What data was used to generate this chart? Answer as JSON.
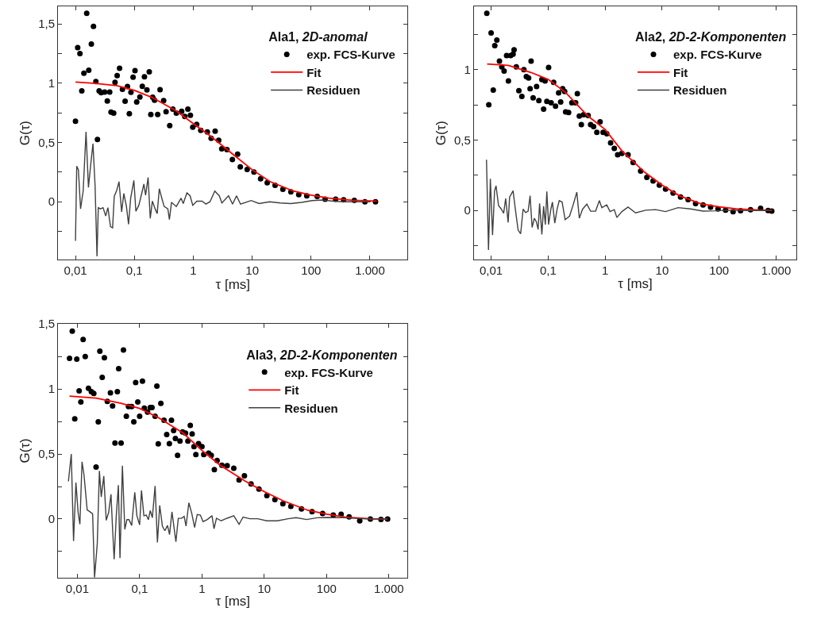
{
  "chart_data": [
    {
      "type": "scatter",
      "xlabel": "τ [ms]",
      "ylabel": "G(τ)",
      "legend_title": "Ala1, 2D-anomal",
      "legend": "top right",
      "log": "x",
      "line_style": "solid",
      "xlim": [
        0.00505,
        4365
      ],
      "ylim": [
        -0.49,
        1.65
      ],
      "xticks": [
        {
          "value": 0.01,
          "label": "0,01"
        },
        {
          "value": 0.1,
          "label": "0,1"
        },
        1,
        10,
        100,
        {
          "value": 1000,
          "label": "1.000"
        }
      ],
      "yticks": [
        {
          "value": -0.25,
          "label": null
        },
        0,
        {
          "value": 0.25,
          "label": null
        },
        {
          "value": 0.5,
          "label": "0,5"
        },
        {
          "value": 0.75,
          "label": null
        },
        1,
        {
          "value": 1.25,
          "label": null
        },
        {
          "value": 1.5,
          "label": "1,5"
        }
      ],
      "series": [
        {
          "name": "exp. FCS-Kurve",
          "type": "scatter",
          "color": "#000000",
          "marker": "circle",
          "x": [
            0.01,
            0.0109,
            0.0119,
            0.0128,
            0.0139,
            0.0155,
            0.0168,
            0.0186,
            0.0202,
            0.0222,
            0.0236,
            0.0252,
            0.0273,
            0.0313,
            0.0347,
            0.0381,
            0.0401,
            0.0445,
            0.0469,
            0.051,
            0.056,
            0.0627,
            0.0696,
            0.0763,
            0.0821,
            0.0874,
            0.095,
            0.1025,
            0.1095,
            0.124,
            0.1363,
            0.1482,
            0.1632,
            0.1789,
            0.1902,
            0.2045,
            0.2196,
            0.2488,
            0.2727,
            0.3137,
            0.3452,
            0.3982,
            0.4496,
            0.5154,
            0.6349,
            0.7174,
            0.8096,
            0.8925,
            0.979,
            1.143,
            1.34,
            1.73,
            2.01,
            2.35,
            2.7,
            3.04,
            3.73,
            4.61,
            5.66,
            6.28,
            8.22,
            10.7,
            13.9,
            18.0,
            24.5,
            33.2,
            45.4,
            61.8,
            84.5,
            127,
            173,
            261,
            357,
            542,
            820,
            1240
          ],
          "values": [
            0.68,
            1.3,
            1.25,
            0.935,
            1.085,
            1.59,
            1.11,
            1.33,
            1.48,
            1.015,
            0.525,
            0.935,
            0.92,
            0.925,
            0.85,
            0.925,
            0.757,
            0.748,
            1.007,
            1.065,
            1.127,
            0.949,
            0.848,
            0.973,
            0.743,
            0.924,
            1.051,
            1.107,
            0.842,
            0.884,
            0.975,
            1.054,
            0.944,
            1.096,
            0.737,
            0.882,
            0.857,
            0.737,
            0.946,
            0.853,
            0.759,
            0.643,
            0.781,
            0.748,
            0.763,
            0.719,
            0.781,
            0.73,
            0.629,
            0.652,
            0.603,
            0.589,
            0.536,
            0.596,
            0.518,
            0.446,
            0.44,
            0.357,
            0.402,
            0.295,
            0.272,
            0.25,
            0.194,
            0.161,
            0.138,
            0.105,
            0.083,
            0.06,
            0.049,
            0.045,
            0.022,
            0.022,
            0.016,
            0.011,
            0,
            0
          ]
        },
        {
          "name": "Fit",
          "type": "line",
          "color": "#ff0000",
          "x": [
            0.01,
            0.02,
            0.05,
            0.1,
            0.2,
            0.5,
            1,
            2,
            5,
            10,
            20,
            50,
            100,
            200,
            500,
            1300
          ],
          "values": [
            1.01,
            1.0,
            0.98,
            0.94,
            0.88,
            0.77,
            0.66,
            0.55,
            0.39,
            0.27,
            0.17,
            0.09,
            0.055,
            0.03,
            0.012,
            0.005
          ]
        },
        {
          "name": "Residuen",
          "type": "line",
          "color": "#404040",
          "x": [
            0.01,
            0.0105,
            0.0112,
            0.0122,
            0.0135,
            0.0151,
            0.0166,
            0.0182,
            0.0198,
            0.0215,
            0.0232,
            0.0244,
            0.0265,
            0.0294,
            0.0326,
            0.0355,
            0.0393,
            0.0427,
            0.0455,
            0.0505,
            0.0548,
            0.0608,
            0.0661,
            0.0733,
            0.0796,
            0.0865,
            0.098,
            0.106,
            0.119,
            0.134,
            0.145,
            0.155,
            0.171,
            0.186,
            0.202,
            0.225,
            0.244,
            0.265,
            0.294,
            0.32,
            0.37,
            0.393,
            0.427,
            0.515,
            0.621,
            0.675,
            0.78,
            0.883,
            0.98,
            1.15,
            1.41,
            1.64,
            1.92,
            2.32,
            2.76,
            3.06,
            3.97,
            4.64,
            5.42,
            6.34,
            9.6,
            13.1,
            19.8,
            30,
            45,
            69,
            104,
            158,
            239,
            362,
            1020
          ],
          "values": [
            -0.33,
            0.3,
            0.27,
            -0.06,
            0.09,
            0.59,
            0.12,
            0.32,
            0.49,
            0.14,
            -0.46,
            -0.05,
            -0.06,
            -0.05,
            -0.12,
            -0.05,
            -0.21,
            -0.22,
            0.045,
            0.1,
            0.17,
            -0.085,
            0.07,
            -0.04,
            -0.19,
            0.03,
            0.18,
            -0.08,
            -0.03,
            0.075,
            0.15,
            0.055,
            0.205,
            -0.14,
            0.005,
            -0.06,
            -0.1,
            0.11,
            0.025,
            -0.04,
            -0.06,
            -0.15,
            -0.005,
            -0.04,
            0.03,
            -0.015,
            0.075,
            0.05,
            -0.03,
            0.005,
            0.005,
            -0.02,
            0.0,
            0.09,
            0.05,
            -0.01,
            0.05,
            -0.02,
            0.05,
            -0.02,
            0.01,
            -0.015,
            0.0,
            -0.01,
            -0.015,
            -0.005,
            0.01,
            0.015,
            0.005,
            0,
            0
          ]
        }
      ]
    },
    {
      "type": "scatter",
      "xlabel": "τ [ms]",
      "ylabel": "G(τ)",
      "legend_title": "Ala2, 2D-2-Komponenten",
      "legend": "top right",
      "log": "x",
      "line_style": "solid",
      "xlim": [
        0.00498,
        2290
      ],
      "ylim": [
        -0.35,
        1.45
      ],
      "xticks": [
        {
          "value": 0.01,
          "label": "0,01"
        },
        {
          "value": 0.1,
          "label": "0,1"
        },
        1,
        10,
        100,
        {
          "value": 1000,
          "label": "1.000"
        }
      ],
      "yticks": [
        {
          "value": -0.25,
          "label": null
        },
        0,
        {
          "value": 0.25,
          "label": null
        },
        {
          "value": 0.5,
          "label": "0,5"
        },
        {
          "value": 0.75,
          "label": null
        },
        1,
        {
          "value": 1.25,
          "label": null
        }
      ],
      "series": [
        {
          "name": "exp. FCS-Kurve",
          "type": "scatter",
          "color": "#000000",
          "marker": "circle",
          "x": [
            0.0084,
            0.0091,
            0.01,
            0.0109,
            0.0116,
            0.0126,
            0.014,
            0.0154,
            0.0169,
            0.0187,
            0.0201,
            0.022,
            0.0243,
            0.0253,
            0.0277,
            0.0307,
            0.0346,
            0.0376,
            0.0415,
            0.0455,
            0.0483,
            0.0503,
            0.0546,
            0.0628,
            0.0688,
            0.0777,
            0.0834,
            0.0885,
            0.095,
            0.102,
            0.113,
            0.125,
            0.135,
            0.153,
            0.166,
            0.18,
            0.195,
            0.203,
            0.229,
            0.261,
            0.304,
            0.326,
            0.353,
            0.383,
            0.42,
            0.504,
            0.557,
            0.628,
            0.716,
            0.817,
            0.922,
            1.07,
            1.25,
            1.45,
            1.66,
            1.97,
            2.53,
            3.1,
            4.2,
            5.4,
            6.95,
            8.95,
            11.5,
            15.6,
            21.1,
            28.6,
            38.7,
            52.4,
            71,
            96,
            130,
            176,
            238,
            357,
            535,
            725,
            841
          ],
          "values": [
            1.4,
            0.75,
            1.26,
            0.855,
            1.17,
            1.21,
            1.06,
            1.02,
            0.99,
            1.1,
            0.92,
            1.1,
            1.11,
            1.14,
            1.02,
            0.85,
            0.81,
            1.0,
            0.95,
            0.94,
            0.865,
            1.06,
            0.8,
            0.88,
            0.78,
            0.93,
            0.72,
            0.92,
            0.775,
            1.015,
            0.765,
            0.91,
            0.74,
            0.835,
            0.77,
            0.865,
            0.845,
            0.7,
            0.695,
            0.765,
            0.765,
            0.83,
            0.67,
            0.61,
            0.68,
            0.675,
            0.61,
            0.595,
            0.555,
            0.63,
            0.555,
            0.545,
            0.48,
            0.44,
            0.395,
            0.405,
            0.395,
            0.34,
            0.28,
            0.235,
            0.21,
            0.18,
            0.152,
            0.124,
            0.096,
            0.077,
            0.049,
            0.039,
            0.024,
            0.011,
            0.002,
            -0.008,
            -0.002,
            0.006,
            0.015,
            0,
            -0.004
          ]
        },
        {
          "name": "Fit",
          "type": "line",
          "color": "#ff0000",
          "x": [
            0.0085,
            0.02,
            0.05,
            0.1,
            0.2,
            0.5,
            1,
            2,
            5,
            10,
            20,
            50,
            100,
            200,
            500,
            850
          ],
          "values": [
            1.04,
            1.03,
            0.98,
            0.93,
            0.84,
            0.67,
            0.575,
            0.42,
            0.27,
            0.18,
            0.105,
            0.045,
            0.026,
            0.012,
            0.003,
            0.0
          ]
        },
        {
          "name": "Residuen",
          "type": "line",
          "color": "#404040",
          "x": [
            0.0083,
            0.009,
            0.0097,
            0.0106,
            0.0115,
            0.0122,
            0.0135,
            0.0151,
            0.0166,
            0.018,
            0.0199,
            0.0211,
            0.0243,
            0.0264,
            0.0298,
            0.033,
            0.0364,
            0.0403,
            0.0446,
            0.0483,
            0.0524,
            0.0574,
            0.0622,
            0.0668,
            0.0709,
            0.0777,
            0.0834,
            0.0895,
            0.095,
            0.102,
            0.111,
            0.119,
            0.131,
            0.144,
            0.157,
            0.176,
            0.199,
            0.238,
            0.275,
            0.319,
            0.353,
            0.403,
            0.479,
            0.557,
            0.681,
            0.793,
            0.877,
            1.07,
            1.22,
            1.45,
            1.61,
            1.97,
            2.53,
            3.43,
            5.14,
            7.69,
            11.5,
            19.1,
            31.6,
            52.4,
            86.9,
            144,
            292,
            802
          ],
          "values": [
            0.36,
            -0.28,
            0.225,
            -0.175,
            0.14,
            0.175,
            0.035,
            0.01,
            -0.02,
            0.085,
            -0.085,
            0.095,
            0.14,
            0.02,
            -0.14,
            -0.165,
            0.01,
            -0.015,
            -0.005,
            0.105,
            -0.12,
            -0.055,
            -0.08,
            -0.135,
            0.05,
            -0.17,
            0.03,
            -0.1,
            0.135,
            -0.1,
            0.002,
            0.06,
            -0.09,
            0.01,
            0.07,
            0.06,
            -0.065,
            -0.04,
            0.04,
            0.13,
            -0.055,
            0.01,
            0.045,
            -0.005,
            -0.005,
            0.07,
            0.02,
            0.04,
            -0.008,
            0.006,
            -0.05,
            -0.008,
            0.024,
            -0.017,
            0.002,
            0.006,
            -0.008,
            0.02,
            0.011,
            -0.004,
            -0.002,
            0.002,
            0,
            0
          ]
        }
      ]
    },
    {
      "type": "scatter",
      "xlabel": "τ [ms]",
      "ylabel": "G(τ)",
      "legend_title": "Ala3, 2D-2-Komponenten",
      "legend": "top right",
      "log": "x",
      "line_style": "solid",
      "xlim": [
        0.0049,
        2000
      ],
      "ylim": [
        -0.45,
        1.5
      ],
      "xticks": [
        {
          "value": 0.01,
          "label": "0,01"
        },
        {
          "value": 0.1,
          "label": "0,1"
        },
        1,
        10,
        100,
        {
          "value": 1000,
          "label": "1.000"
        }
      ],
      "yticks": [
        {
          "value": -0.25,
          "label": null
        },
        0,
        {
          "value": 0.25,
          "label": null
        },
        {
          "value": 0.5,
          "label": "0,5"
        },
        {
          "value": 0.75,
          "label": null
        },
        1,
        {
          "value": 1.25,
          "label": null
        },
        {
          "value": 1.5,
          "label": "1,5"
        }
      ],
      "series": [
        {
          "name": "exp. FCS-Kurve",
          "type": "scatter",
          "color": "#000000",
          "marker": "circle",
          "x": [
            0.0075,
            0.0083,
            0.0091,
            0.0098,
            0.0107,
            0.0114,
            0.0124,
            0.0134,
            0.0151,
            0.0168,
            0.0184,
            0.02,
            0.0217,
            0.023,
            0.0251,
            0.0272,
            0.0303,
            0.034,
            0.0368,
            0.0402,
            0.0439,
            0.0461,
            0.0504,
            0.055,
            0.0612,
            0.0662,
            0.0745,
            0.0806,
            0.0863,
            0.0934,
            0.1,
            0.111,
            0.119,
            0.134,
            0.148,
            0.158,
            0.177,
            0.189,
            0.199,
            0.219,
            0.246,
            0.272,
            0.3,
            0.324,
            0.351,
            0.375,
            0.406,
            0.444,
            0.489,
            0.545,
            0.595,
            0.65,
            0.696,
            0.745,
            0.798,
            0.881,
            1.0,
            1.07,
            1.28,
            1.41,
            1.58,
            1.75,
            2.09,
            2.54,
            3.24,
            3.94,
            4.8,
            6.13,
            8.22,
            11.0,
            14.8,
            19.9,
            26.7,
            39.5,
            58.4,
            86.3,
            128,
            171,
            230,
            340,
            504,
            745,
            953
          ],
          "values": [
            1.235,
            1.445,
            0.77,
            1.23,
            0.985,
            0.9,
            1.38,
            1.25,
            1.005,
            0.98,
            0.965,
            0.4,
            0.747,
            1.29,
            1.09,
            1.24,
            0.905,
            0.97,
            0.87,
            0.584,
            0.98,
            1.157,
            0.584,
            1.3,
            0.79,
            0.865,
            0.865,
            0.747,
            1.05,
            0.9,
            0.79,
            1.06,
            0.853,
            0.822,
            0.857,
            0.857,
            0.79,
            1.022,
            0.578,
            0.89,
            0.76,
            0.65,
            0.58,
            0.76,
            0.68,
            0.62,
            0.49,
            0.6,
            0.67,
            0.66,
            0.6,
            0.72,
            0.655,
            0.557,
            0.496,
            0.58,
            0.557,
            0.496,
            0.506,
            0.49,
            0.38,
            0.45,
            0.414,
            0.41,
            0.39,
            0.3,
            0.333,
            0.27,
            0.23,
            0.18,
            0.149,
            0.118,
            0.098,
            0.078,
            0.057,
            0.043,
            0.031,
            0.037,
            0.016,
            -0.014,
            0,
            -0.004,
            0
          ]
        },
        {
          "name": "Fit",
          "type": "line",
          "color": "#ff0000",
          "x": [
            0.0075,
            0.02,
            0.05,
            0.1,
            0.2,
            0.5,
            1,
            2,
            5,
            10,
            20,
            50,
            100,
            200,
            500,
            950
          ],
          "values": [
            0.945,
            0.93,
            0.89,
            0.85,
            0.78,
            0.66,
            0.527,
            0.41,
            0.29,
            0.21,
            0.14,
            0.067,
            0.037,
            0.014,
            0.002,
            0.0
          ]
        },
        {
          "name": "Residuen",
          "type": "line",
          "color": "#404040",
          "x": [
            0.0072,
            0.008,
            0.0087,
            0.0095,
            0.0103,
            0.011,
            0.0119,
            0.0128,
            0.0144,
            0.0155,
            0.0176,
            0.0189,
            0.0209,
            0.0226,
            0.0242,
            0.0266,
            0.0291,
            0.0318,
            0.0347,
            0.0368,
            0.039,
            0.0422,
            0.0456,
            0.0484,
            0.0529,
            0.0578,
            0.0625,
            0.0675,
            0.0745,
            0.0836,
            0.0904,
            0.1,
            0.107,
            0.117,
            0.128,
            0.138,
            0.148,
            0.16,
            0.177,
            0.193,
            0.21,
            0.232,
            0.254,
            0.28,
            0.302,
            0.33,
            0.382,
            0.417,
            0.469,
            0.518,
            0.555,
            0.616,
            0.685,
            0.762,
            0.84,
            0.944,
            1.04,
            1.22,
            1.45,
            1.56,
            1.71,
            2.03,
            2.54,
            3.24,
            3.94,
            4.57,
            5.85,
            7.83,
            11.0,
            16.2,
            24.2,
            32.4,
            47.9,
            70.7,
            104,
            188,
            504,
            953
          ],
          "values": [
            0.29,
            0.5,
            -0.17,
            0.28,
            0.05,
            -0.04,
            0.44,
            0.34,
            0.07,
            0.06,
            0.04,
            -0.45,
            -0.19,
            0.37,
            0.17,
            0.33,
            -0.01,
            0.05,
            0.19,
            -0.075,
            -0.31,
            0.025,
            0.26,
            -0.3,
            0.41,
            -0.08,
            -0.005,
            -0.005,
            -0.05,
            0.205,
            0.025,
            -0.045,
            0.22,
            0.025,
            0.03,
            -0.005,
            0.065,
            0.01,
            0.255,
            -0.18,
            0.105,
            -0.055,
            -0.09,
            -0.05,
            -0.12,
            0.055,
            -0.175,
            0.005,
            0.005,
            0.02,
            -0.055,
            0.125,
            0.045,
            -0.065,
            0.035,
            0.03,
            -0.02,
            -0.004,
            0.025,
            -0.075,
            0.006,
            -0.014,
            0.006,
            0.025,
            -0.04,
            0.015,
            0.002,
            0.002,
            -0.014,
            -0.014,
            0.002,
            0.01,
            -0.004,
            0.01,
            0.012,
            0.01,
            0,
            0
          ]
        }
      ]
    }
  ]
}
